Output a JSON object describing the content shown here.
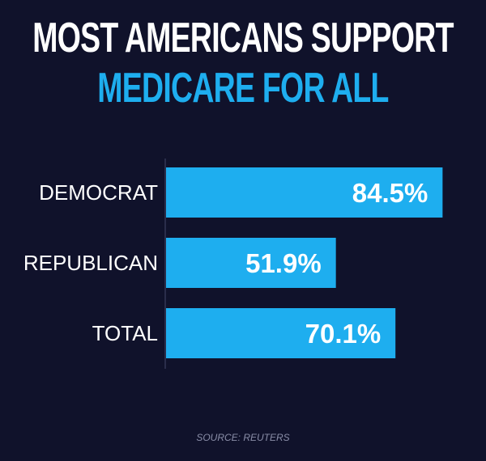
{
  "title_line1": "MOST AMERICANS SUPPORT",
  "title_line2": "MEDICARE FOR ALL",
  "source": "SOURCE: REUTERS",
  "colors": {
    "background": "#10122b",
    "bar": "#1eaeef",
    "accent_title": "#1eaeef",
    "text": "#ffffff"
  },
  "chart_data": {
    "type": "bar",
    "orientation": "horizontal",
    "title": "MOST AMERICANS SUPPORT MEDICARE FOR ALL",
    "categories": [
      "DEMOCRAT",
      "REPUBLICAN",
      "TOTAL"
    ],
    "values": [
      84.5,
      51.9,
      70.1
    ],
    "data_labels": [
      "84.5%",
      "51.9%",
      "70.1%"
    ],
    "unit": "%",
    "xlim": [
      0,
      100
    ],
    "grid": false
  }
}
